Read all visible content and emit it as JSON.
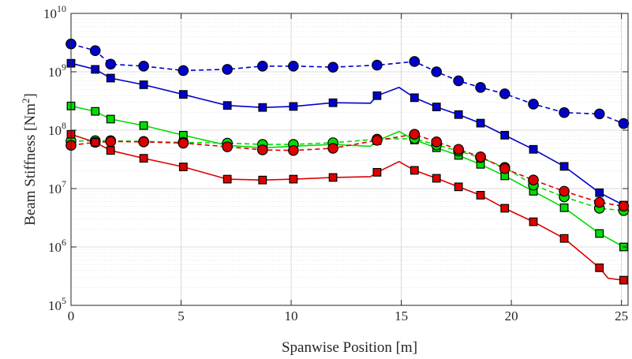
{
  "chart_data": {
    "type": "line",
    "title": "",
    "xlabel": "Spanwise Position [m]",
    "ylabel_main": "Beam Stiffness [Nm",
    "ylabel_sup": "2",
    "ylabel_tail": "]",
    "xscale": "linear",
    "yscale": "log",
    "xlim": [
      0,
      25.3
    ],
    "ylim": [
      100000,
      10000000000
    ],
    "grid": true,
    "minor_grid": true,
    "legend": "none",
    "x_ticks": [
      "0",
      "5",
      "10",
      "15",
      "20",
      "25"
    ],
    "y_ticks": [
      {
        "base": "10",
        "exp": "5"
      },
      {
        "base": "10",
        "exp": "6"
      },
      {
        "base": "10",
        "exp": "7"
      },
      {
        "base": "10",
        "exp": "8"
      },
      {
        "base": "10",
        "exp": "9"
      },
      {
        "base": "10",
        "exp": "10"
      }
    ],
    "series": [
      {
        "color": "#0000cc",
        "fill": "#0000cc",
        "style": "dashed",
        "marker": "circle",
        "x": [
          0,
          1.1,
          1.8,
          3.3,
          5.1,
          7.1,
          8.7,
          10.1,
          11.9,
          13.9,
          15.6,
          16.6,
          17.6,
          18.6,
          19.7,
          21.0,
          22.4,
          24.0,
          25.1
        ],
        "y": [
          3000000000.0,
          2300000000.0,
          1350000000.0,
          1250000000.0,
          1050000000.0,
          1100000000.0,
          1250000000.0,
          1250000000.0,
          1200000000.0,
          1300000000.0,
          1500000000.0,
          1000000000.0,
          700000000.0,
          540000000.0,
          420000000.0,
          280000000.0,
          200000000.0,
          190000000.0,
          130000000.0
        ],
        "marker_x": [
          0,
          1.1,
          1.8,
          3.3,
          5.1,
          7.1,
          8.7,
          10.1,
          11.9,
          13.9,
          15.6,
          16.6,
          17.6,
          18.6,
          19.7,
          21.0,
          22.4,
          24.0,
          25.1
        ],
        "marker_y": [
          3000000000.0,
          2300000000.0,
          1350000000.0,
          1250000000.0,
          1050000000.0,
          1100000000.0,
          1250000000.0,
          1250000000.0,
          1200000000.0,
          1300000000.0,
          1500000000.0,
          1000000000.0,
          700000000.0,
          540000000.0,
          420000000.0,
          280000000.0,
          200000000.0,
          190000000.0,
          130000000.0
        ]
      },
      {
        "color": "#0000cc",
        "fill": "#0000cc",
        "style": "solid",
        "marker": "square",
        "x": [
          0,
          1.1,
          1.8,
          3.3,
          5.1,
          7.1,
          8.7,
          10.1,
          11.9,
          13.6,
          13.9,
          14.9,
          15.6,
          16.6,
          17.6,
          18.6,
          19.7,
          21.0,
          22.4,
          24.0,
          25.1
        ],
        "y": [
          1400000000.0,
          1100000000.0,
          780000000.0,
          600000000.0,
          410000000.0,
          265000000.0,
          245000000.0,
          255000000.0,
          295000000.0,
          290000000.0,
          390000000.0,
          540000000.0,
          360000000.0,
          250000000.0,
          185000000.0,
          132000000.0,
          82000000.0,
          47000000.0,
          24000000.0,
          8500000.0,
          5200000.0
        ],
        "marker_x": [
          0,
          1.1,
          1.8,
          3.3,
          5.1,
          7.1,
          8.7,
          10.1,
          11.9,
          13.9,
          15.6,
          16.6,
          17.6,
          18.6,
          19.7,
          21.0,
          22.4,
          24.0,
          25.1
        ],
        "marker_y": [
          1400000000.0,
          1100000000.0,
          780000000.0,
          600000000.0,
          410000000.0,
          265000000.0,
          245000000.0,
          255000000.0,
          295000000.0,
          390000000.0,
          360000000.0,
          250000000.0,
          185000000.0,
          132000000.0,
          82000000.0,
          47000000.0,
          24000000.0,
          8500000.0,
          5200000.0
        ]
      },
      {
        "color": "#00dd00",
        "fill": "#00dd00",
        "style": "solid",
        "marker": "square",
        "x": [
          0,
          1.1,
          1.8,
          3.3,
          5.1,
          7.1,
          8.7,
          10.1,
          11.9,
          13.6,
          13.9,
          14.9,
          15.6,
          16.6,
          17.6,
          18.6,
          19.7,
          21.0,
          22.4,
          24.0,
          25.1
        ],
        "y": [
          260000000.0,
          210000000.0,
          155000000.0,
          120000000.0,
          82000000.0,
          55000000.0,
          50000000.0,
          53000000.0,
          57000000.0,
          53000000.0,
          66000000.0,
          95000000.0,
          68000000.0,
          50000000.0,
          37000000.0,
          26000000.0,
          16500000.0,
          9000000.0,
          4700000.0,
          1700000.0,
          1000000.0
        ],
        "marker_x": [
          0,
          1.1,
          1.8,
          3.3,
          5.1,
          7.1,
          8.7,
          10.1,
          11.9,
          13.9,
          15.6,
          16.6,
          17.6,
          18.6,
          19.7,
          21.0,
          22.4,
          24.0,
          25.1
        ],
        "marker_y": [
          260000000.0,
          210000000.0,
          155000000.0,
          120000000.0,
          82000000.0,
          55000000.0,
          50000000.0,
          53000000.0,
          57000000.0,
          66000000.0,
          68000000.0,
          50000000.0,
          37000000.0,
          26000000.0,
          16500000.0,
          9000000.0,
          4700000.0,
          1700000.0,
          1000000.0
        ]
      },
      {
        "color": "#00dd00",
        "fill": "#00dd00",
        "style": "dashed",
        "marker": "circle",
        "x": [
          0,
          1.1,
          1.8,
          3.3,
          5.1,
          7.1,
          8.7,
          10.1,
          11.9,
          13.9,
          15.6,
          16.6,
          17.6,
          18.6,
          19.7,
          21.0,
          22.4,
          24.0,
          25.1
        ],
        "y": [
          65000000.0,
          66000000.0,
          66000000.0,
          64000000.0,
          62000000.0,
          60000000.0,
          57000000.0,
          57000000.0,
          61000000.0,
          70000000.0,
          72000000.0,
          56000000.0,
          44000000.0,
          34000000.0,
          23000000.0,
          11500000.0,
          7200000.0,
          4600000.0,
          4200000.0
        ],
        "marker_x": [
          0,
          1.1,
          1.8,
          3.3,
          5.1,
          7.1,
          8.7,
          10.1,
          11.9,
          13.9,
          15.6,
          16.6,
          17.6,
          18.6,
          19.7,
          21.0,
          22.4,
          24.0,
          25.1
        ],
        "marker_y": [
          65000000.0,
          66000000.0,
          66000000.0,
          64000000.0,
          62000000.0,
          60000000.0,
          57000000.0,
          57000000.0,
          61000000.0,
          70000000.0,
          72000000.0,
          56000000.0,
          44000000.0,
          34000000.0,
          23000000.0,
          11500000.0,
          7200000.0,
          4600000.0,
          4200000.0
        ]
      },
      {
        "color": "#dd0000",
        "fill": "#dd0000",
        "style": "dashed",
        "marker": "circle",
        "x": [
          0,
          1.1,
          1.8,
          3.3,
          5.1,
          7.1,
          8.7,
          10.1,
          11.9,
          13.9,
          15.6,
          16.6,
          17.6,
          18.6,
          19.7,
          21.0,
          22.4,
          24.0,
          25.1
        ],
        "y": [
          55000000.0,
          62000000.0,
          64000000.0,
          63000000.0,
          60000000.0,
          52000000.0,
          46000000.0,
          45000000.0,
          49000000.0,
          67000000.0,
          85000000.0,
          63000000.0,
          47000000.0,
          35000000.0,
          22000000.0,
          14000000.0,
          9000000.0,
          5800000.0,
          5000000.0
        ],
        "marker_x": [
          0,
          1.1,
          1.8,
          3.3,
          5.1,
          7.1,
          8.7,
          10.1,
          11.9,
          13.9,
          15.6,
          16.6,
          17.6,
          18.6,
          19.7,
          21.0,
          22.4,
          24.0,
          25.1
        ],
        "marker_y": [
          55000000.0,
          62000000.0,
          64000000.0,
          63000000.0,
          60000000.0,
          52000000.0,
          46000000.0,
          45000000.0,
          49000000.0,
          67000000.0,
          85000000.0,
          63000000.0,
          47000000.0,
          35000000.0,
          22000000.0,
          14000000.0,
          9000000.0,
          5800000.0,
          5000000.0
        ]
      },
      {
        "color": "#dd0000",
        "fill": "#dd0000",
        "style": "solid",
        "marker": "square",
        "x": [
          0,
          1.1,
          1.8,
          3.3,
          5.1,
          7.1,
          8.7,
          10.1,
          11.9,
          13.6,
          13.9,
          14.9,
          15.6,
          16.6,
          17.6,
          18.6,
          19.7,
          21.0,
          22.4,
          24.0,
          24.4,
          25.1
        ],
        "y": [
          85000000.0,
          62000000.0,
          45000000.0,
          33000000.0,
          23500000.0,
          14500000.0,
          14000000.0,
          14500000.0,
          15500000.0,
          16000000.0,
          19000000.0,
          29000000.0,
          20500000.0,
          15000000.0,
          10700000.0,
          7700000.0,
          4600000.0,
          2700000.0,
          1400000.0,
          440000.0,
          290000.0,
          270000.0
        ],
        "marker_x": [
          0,
          1.1,
          1.8,
          3.3,
          5.1,
          7.1,
          8.7,
          10.1,
          11.9,
          13.9,
          15.6,
          16.6,
          17.6,
          18.6,
          19.7,
          21.0,
          22.4,
          24.0,
          25.1
        ],
        "marker_y": [
          85000000.0,
          62000000.0,
          45000000.0,
          33000000.0,
          23500000.0,
          14500000.0,
          14000000.0,
          14500000.0,
          15500000.0,
          19000000.0,
          20500000.0,
          15000000.0,
          10700000.0,
          7700000.0,
          4600000.0,
          2700000.0,
          1400000.0,
          440000.0,
          270000.0
        ]
      }
    ]
  }
}
